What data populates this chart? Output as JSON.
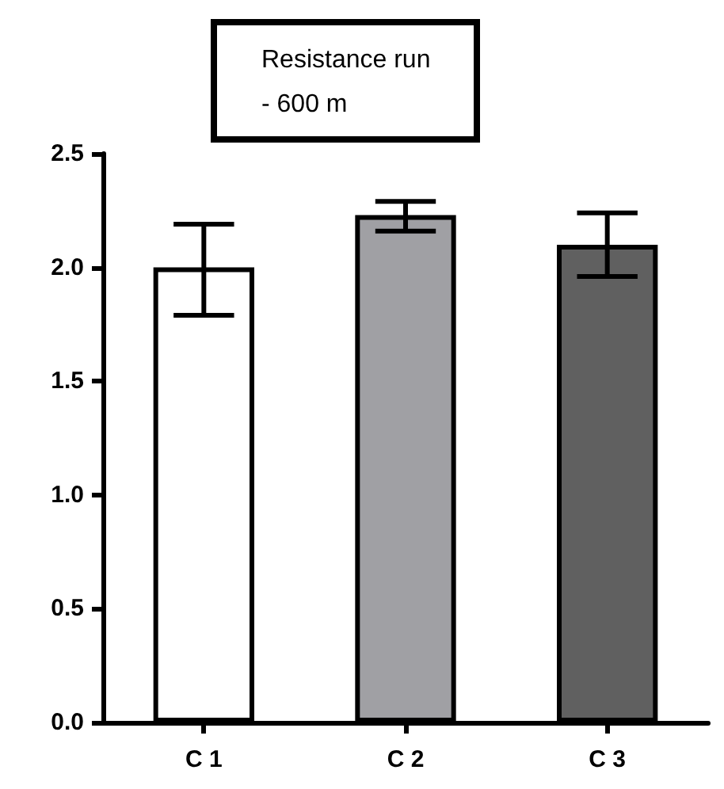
{
  "chart_data": {
    "type": "bar",
    "title": "Resistance run\n- 600 m",
    "categories": [
      "C 1",
      "C 2",
      "C 3"
    ],
    "values": [
      2.0,
      2.23,
      2.1
    ],
    "colors": [
      "#ffffff",
      "#a0a0a4",
      "#606060"
    ],
    "errors": [
      [
        1.79,
        2.19
      ],
      [
        2.16,
        2.29
      ],
      [
        1.96,
        2.24
      ]
    ],
    "ylim": [
      0,
      2.5
    ],
    "yticks": [
      {
        "value": 0,
        "label": "0.0"
      },
      {
        "value": 0.5,
        "label": "0.5"
      },
      {
        "value": 1,
        "label": "1.0"
      },
      {
        "value": 1.5,
        "label": "1.5"
      },
      {
        "value": 2,
        "label": "2.0"
      },
      {
        "value": 2.5,
        "label": "2.5"
      }
    ],
    "grid": false
  }
}
